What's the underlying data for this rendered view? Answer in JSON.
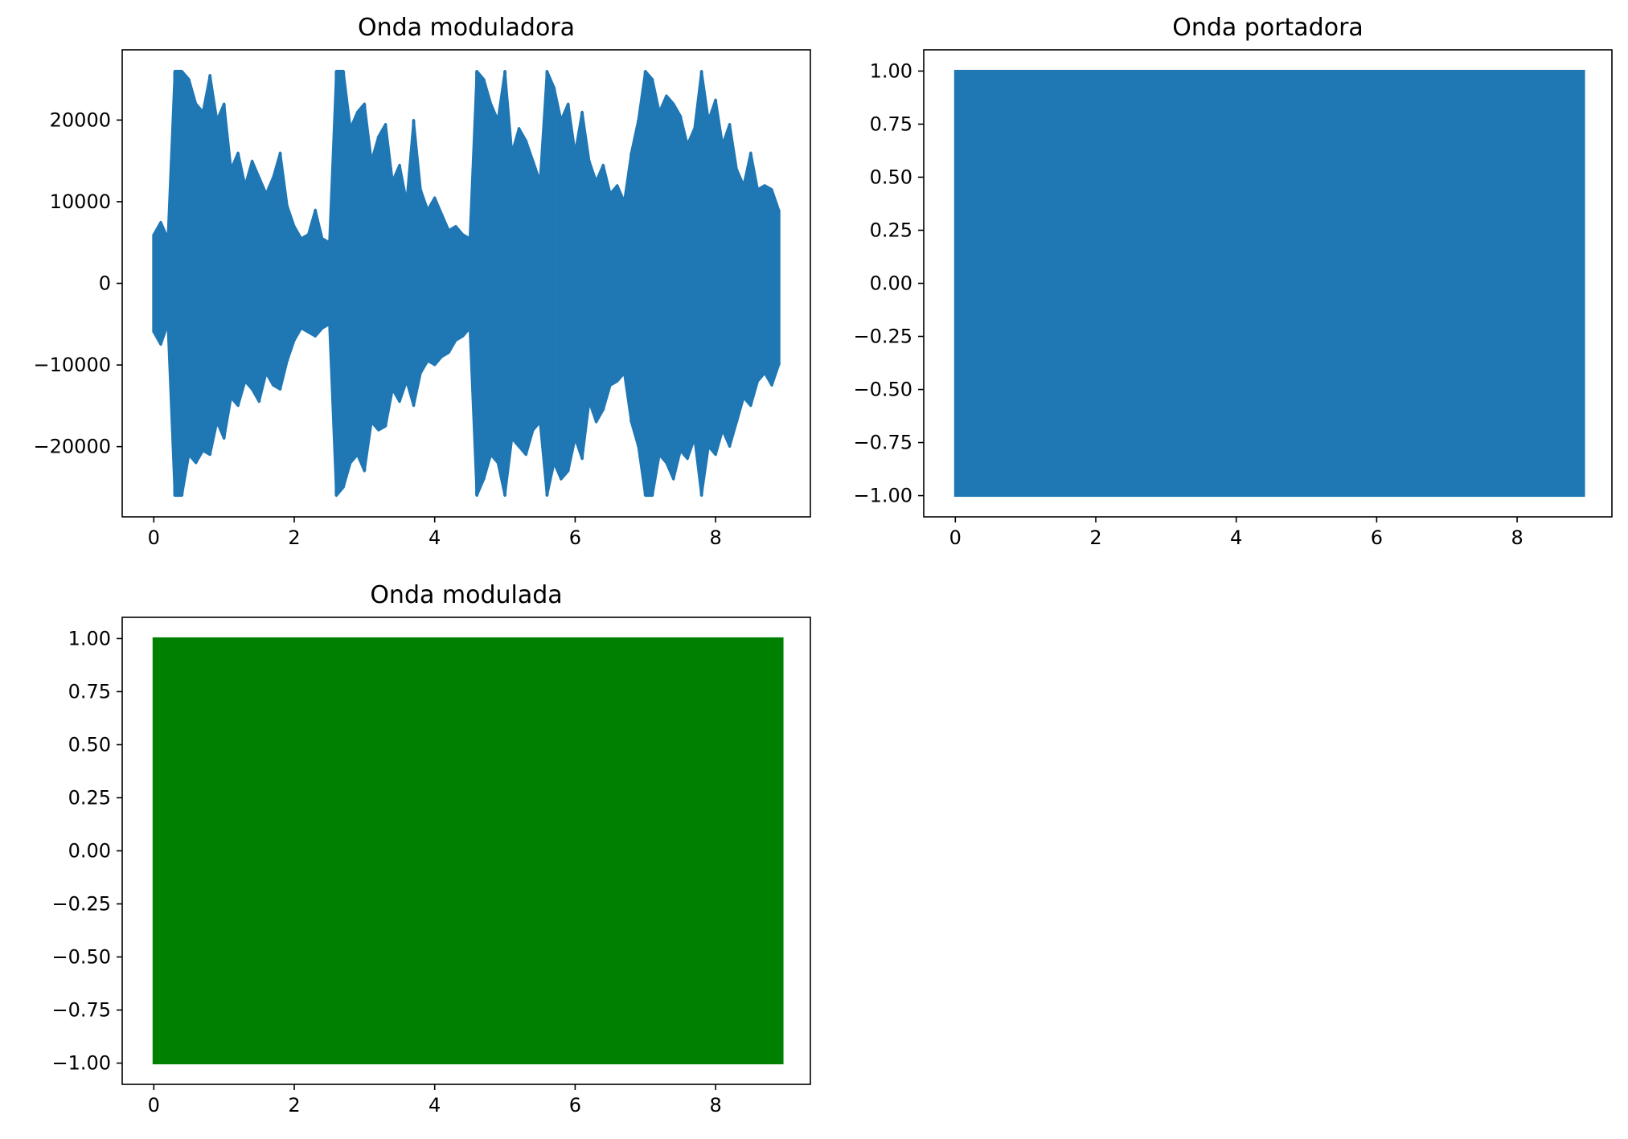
{
  "figure": {
    "background": "#ffffff",
    "axis_color": "#000000"
  },
  "chart_data": [
    {
      "type": "line",
      "title": "Onda moduladora",
      "xlabel": "",
      "ylabel": "",
      "xlim": [
        -0.45,
        9.35
      ],
      "ylim": [
        -28600,
        28600
      ],
      "xticks": [
        0,
        2,
        4,
        6,
        8
      ],
      "xtick_labels": [
        "0",
        "2",
        "4",
        "6",
        "8"
      ],
      "yticks": [
        -20000,
        -10000,
        0,
        10000,
        20000
      ],
      "ytick_labels": [
        "−20000",
        "−10000",
        "0",
        "10000",
        "20000"
      ],
      "grid": false,
      "legend": "none",
      "series": [
        {
          "color": "#1f77b4",
          "x": [
            0.0,
            0.1,
            0.2,
            0.3,
            0.4,
            0.5,
            0.6,
            0.7,
            0.8,
            0.9,
            1.0,
            1.1,
            1.2,
            1.3,
            1.4,
            1.5,
            1.6,
            1.7,
            1.8,
            1.9,
            2.0,
            2.1,
            2.2,
            2.3,
            2.4,
            2.5,
            2.6,
            2.7,
            2.8,
            2.9,
            3.0,
            3.1,
            3.2,
            3.3,
            3.4,
            3.5,
            3.6,
            3.7,
            3.8,
            3.9,
            4.0,
            4.1,
            4.2,
            4.3,
            4.4,
            4.5,
            4.6,
            4.7,
            4.8,
            4.9,
            5.0,
            5.1,
            5.2,
            5.3,
            5.4,
            5.5,
            5.6,
            5.7,
            5.8,
            5.9,
            6.0,
            6.1,
            6.2,
            6.3,
            6.4,
            6.5,
            6.6,
            6.7,
            6.8,
            6.9,
            7.0,
            7.1,
            7.2,
            7.3,
            7.4,
            7.5,
            7.6,
            7.7,
            7.8,
            7.9,
            8.0,
            8.1,
            8.2,
            8.3,
            8.4,
            8.5,
            8.6,
            8.7,
            8.8,
            8.9
          ],
          "envelope_max": [
            6000,
            7500,
            5500,
            26000,
            26000,
            25000,
            22000,
            21000,
            25500,
            20000,
            22000,
            14000,
            16000,
            12000,
            15000,
            13000,
            11000,
            13000,
            16000,
            9500,
            7000,
            5500,
            6000,
            9000,
            5500,
            5000,
            26000,
            26000,
            19000,
            21000,
            22000,
            15000,
            18000,
            19500,
            12500,
            14500,
            10000,
            20000,
            11500,
            9000,
            10500,
            8500,
            6500,
            7000,
            6000,
            5500,
            26000,
            25000,
            22000,
            20000,
            26000,
            16000,
            19000,
            17500,
            15000,
            12500,
            26000,
            24000,
            20000,
            22000,
            16000,
            21000,
            15000,
            12500,
            14500,
            11000,
            12000,
            10000,
            16000,
            20000,
            26000,
            25000,
            21000,
            23000,
            22000,
            20500,
            17000,
            19000,
            26000,
            20000,
            22500,
            17000,
            19500,
            14000,
            12000,
            16000,
            11500,
            12000,
            11500,
            9000
          ],
          "envelope_min": [
            -6000,
            -7500,
            -5000,
            -26000,
            -26000,
            -21000,
            -22000,
            -20500,
            -21000,
            -17000,
            -19000,
            -14000,
            -15000,
            -12000,
            -13000,
            -14500,
            -11000,
            -12500,
            -13000,
            -9500,
            -7000,
            -5500,
            -6000,
            -6500,
            -5500,
            -5000,
            -26000,
            -25000,
            -22000,
            -21000,
            -23000,
            -17000,
            -18000,
            -17500,
            -13000,
            -14500,
            -12000,
            -15000,
            -11000,
            -9500,
            -10000,
            -9000,
            -8500,
            -7000,
            -6500,
            -5500,
            -26000,
            -24000,
            -21000,
            -22000,
            -26000,
            -19000,
            -20000,
            -21000,
            -18000,
            -17000,
            -26000,
            -22000,
            -24000,
            -23000,
            -19000,
            -21500,
            -14500,
            -17000,
            -15500,
            -12500,
            -12000,
            -11000,
            -17000,
            -20000,
            -26000,
            -26000,
            -21000,
            -22000,
            -24000,
            -20500,
            -21500,
            -19000,
            -26000,
            -20000,
            -21000,
            -18000,
            -20000,
            -17000,
            -14000,
            -15000,
            -12000,
            -11000,
            -12500,
            -10000
          ]
        }
      ]
    },
    {
      "type": "line",
      "title": "Onda portadora",
      "xlabel": "",
      "ylabel": "",
      "xlim": [
        -0.45,
        9.35
      ],
      "ylim": [
        -1.1,
        1.1
      ],
      "xticks": [
        0,
        2,
        4,
        6,
        8
      ],
      "xtick_labels": [
        "0",
        "2",
        "4",
        "6",
        "8"
      ],
      "yticks": [
        -1.0,
        -0.75,
        -0.5,
        -0.25,
        0.0,
        0.25,
        0.5,
        0.75,
        1.0
      ],
      "ytick_labels": [
        "−1.00",
        "−0.75",
        "−0.50",
        "−0.25",
        "0.00",
        "0.25",
        "0.50",
        "0.75",
        "1.00"
      ],
      "grid": false,
      "legend": "none",
      "series": [
        {
          "color": "#1f77b4",
          "x_range": [
            0,
            8.95
          ],
          "y_min": -1.0,
          "y_max": 1.0
        }
      ]
    },
    {
      "type": "line",
      "title": "Onda modulada",
      "xlabel": "",
      "ylabel": "",
      "xlim": [
        -0.45,
        9.35
      ],
      "ylim": [
        -1.1,
        1.1
      ],
      "xticks": [
        0,
        2,
        4,
        6,
        8
      ],
      "xtick_labels": [
        "0",
        "2",
        "4",
        "6",
        "8"
      ],
      "yticks": [
        -1.0,
        -0.75,
        -0.5,
        -0.25,
        0.0,
        0.25,
        0.5,
        0.75,
        1.0
      ],
      "ytick_labels": [
        "−1.00",
        "−0.75",
        "−0.50",
        "−0.25",
        "0.00",
        "0.25",
        "0.50",
        "0.75",
        "1.00"
      ],
      "grid": false,
      "legend": "none",
      "series": [
        {
          "color": "#008000",
          "x_range": [
            0,
            8.95
          ],
          "y_min": -1.0,
          "y_max": 1.0
        }
      ]
    }
  ]
}
